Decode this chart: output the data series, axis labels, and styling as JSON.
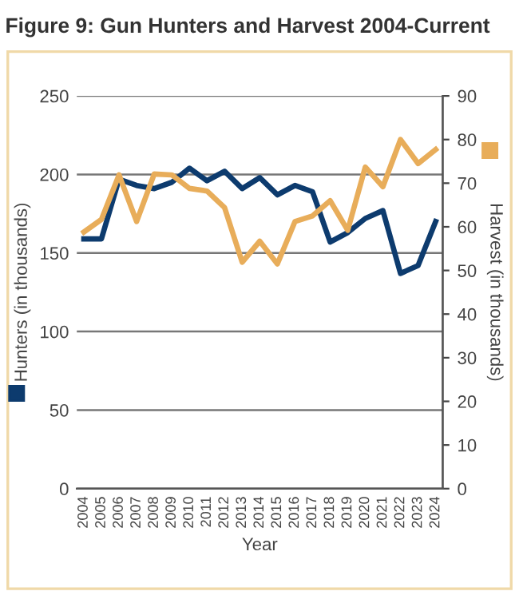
{
  "chart_data": {
    "type": "line",
    "title": "Figure 9: Gun Hunters and Harvest 2004-Current",
    "xlabel": "Year",
    "ylabel": "Hunters (in thousands)",
    "y2label": "Harvest (in thousands)",
    "categories": [
      "2004",
      "2005",
      "2006",
      "2007",
      "2008",
      "2009",
      "2010",
      "2011",
      "2012",
      "2013",
      "2014",
      "2015",
      "2016",
      "2017",
      "2018",
      "2019",
      "2020",
      "2021",
      "2022",
      "2023",
      "2024"
    ],
    "series": [
      {
        "color": "#0d3b6e",
        "values": [
          159,
          159,
          197,
          193,
          191,
          195,
          204,
          196,
          202,
          191,
          198,
          187,
          193,
          189,
          157,
          163,
          172,
          177,
          137,
          142,
          170
        ]
      },
      {
        "color": "#e8ad5a",
        "axis": "y2",
        "values": [
          58.8,
          61.7,
          71.9,
          61.2,
          72.1,
          71.9,
          68.8,
          68.2,
          64.4,
          51.9,
          56.7,
          51.5,
          61.2,
          62.5,
          66,
          59.2,
          73.7,
          69.2,
          80,
          74.5,
          77.7
        ]
      }
    ],
    "ylim": [
      0,
      250
    ],
    "yticks": [
      0,
      50,
      100,
      150,
      200,
      250
    ],
    "y2lim": [
      0,
      90
    ],
    "y2ticks": [
      0,
      10,
      20,
      30,
      40,
      50,
      60,
      70,
      80,
      90
    ],
    "grid": "y",
    "legend": false
  }
}
